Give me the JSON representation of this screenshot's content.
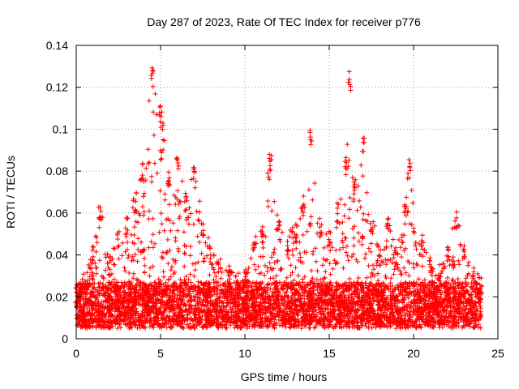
{
  "chart_data": {
    "type": "scatter",
    "title": "Day 287 of 2023, Rate Of TEC Index for receiver p776",
    "xlabel": "GPS time / hours",
    "ylabel": "ROTI / TECUs",
    "xlim": [
      0,
      25
    ],
    "ylim": [
      0,
      0.14
    ],
    "xticks": [
      0,
      5,
      10,
      15,
      20,
      25
    ],
    "yticks": [
      0,
      0.02,
      0.04,
      0.06,
      0.08,
      0.1,
      0.12,
      0.14
    ],
    "xtick_labels": [
      "0",
      "5",
      "10",
      "15",
      "20",
      "25"
    ],
    "ytick_labels": [
      "0",
      "0.02",
      "0.04",
      "0.06",
      "0.08",
      "0.1",
      "0.12",
      "0.14"
    ],
    "grid": true,
    "marker": "+",
    "marker_color": "#ff0000",
    "envelope": [
      [
        0.0,
        0.025
      ],
      [
        0.5,
        0.032
      ],
      [
        1.0,
        0.045
      ],
      [
        1.4,
        0.065
      ],
      [
        2.0,
        0.04
      ],
      [
        2.5,
        0.052
      ],
      [
        3.0,
        0.058
      ],
      [
        3.5,
        0.07
      ],
      [
        4.0,
        0.085
      ],
      [
        4.5,
        0.13
      ],
      [
        5.0,
        0.115
      ],
      [
        5.5,
        0.08
      ],
      [
        6.0,
        0.087
      ],
      [
        6.5,
        0.07
      ],
      [
        7.0,
        0.082
      ],
      [
        7.5,
        0.058
      ],
      [
        8.0,
        0.045
      ],
      [
        8.5,
        0.038
      ],
      [
        9.0,
        0.035
      ],
      [
        9.5,
        0.03
      ],
      [
        10.0,
        0.035
      ],
      [
        10.5,
        0.048
      ],
      [
        11.0,
        0.055
      ],
      [
        11.5,
        0.09
      ],
      [
        12.0,
        0.06
      ],
      [
        12.5,
        0.05
      ],
      [
        13.0,
        0.055
      ],
      [
        13.5,
        0.07
      ],
      [
        13.9,
        0.1
      ],
      [
        14.5,
        0.058
      ],
      [
        15.0,
        0.052
      ],
      [
        15.5,
        0.065
      ],
      [
        16.0,
        0.09
      ],
      [
        16.2,
        0.128
      ],
      [
        16.5,
        0.075
      ],
      [
        17.0,
        0.098
      ],
      [
        17.5,
        0.06
      ],
      [
        18.0,
        0.045
      ],
      [
        18.5,
        0.058
      ],
      [
        19.0,
        0.042
      ],
      [
        19.5,
        0.07
      ],
      [
        19.8,
        0.086
      ],
      [
        20.5,
        0.05
      ],
      [
        21.0,
        0.04
      ],
      [
        21.5,
        0.035
      ],
      [
        22.0,
        0.045
      ],
      [
        22.5,
        0.062
      ],
      [
        23.0,
        0.045
      ],
      [
        23.5,
        0.035
      ],
      [
        24.0,
        0.03
      ]
    ]
  }
}
